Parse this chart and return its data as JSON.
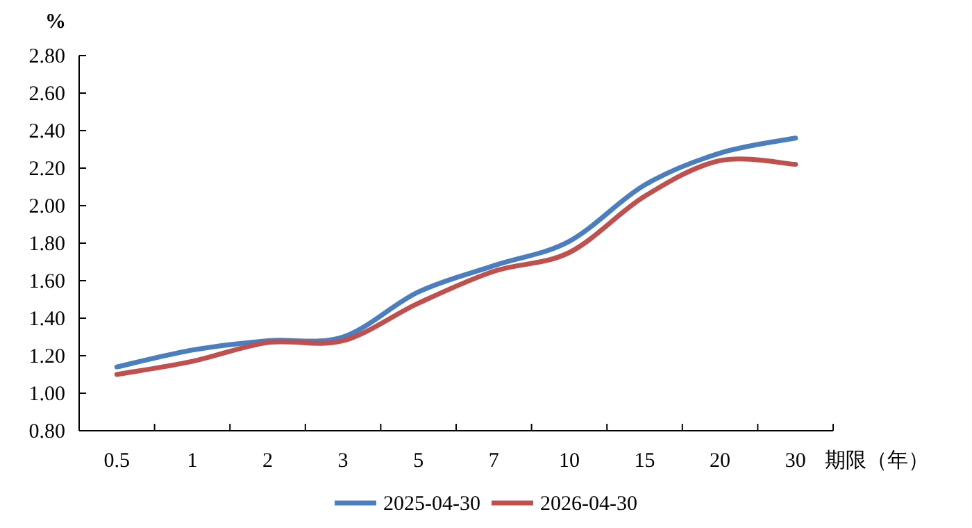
{
  "chart_data": {
    "type": "line",
    "xlabel": "期限（年）",
    "ylabel": "%",
    "categories": [
      "0.5",
      "1",
      "2",
      "3",
      "5",
      "7",
      "10",
      "15",
      "20",
      "30"
    ],
    "series": [
      {
        "name": "2025-04-30",
        "color": "#4a7ebf",
        "values": [
          1.14,
          1.23,
          1.28,
          1.3,
          1.54,
          1.68,
          1.81,
          2.11,
          2.28,
          2.36
        ]
      },
      {
        "name": "2026-04-30",
        "color": "#c0504d",
        "values": [
          1.1,
          1.17,
          1.27,
          1.28,
          1.48,
          1.65,
          1.75,
          2.05,
          2.24,
          2.22
        ]
      }
    ],
    "ylim": [
      0.8,
      2.8
    ],
    "yticks": [
      {
        "value": 0.8,
        "label": "0.80"
      },
      {
        "value": 1.0,
        "label": "1.00"
      },
      {
        "value": 1.2,
        "label": "1.20"
      },
      {
        "value": 1.4,
        "label": "1.40"
      },
      {
        "value": 1.6,
        "label": "1.60"
      },
      {
        "value": 1.8,
        "label": "1.80"
      },
      {
        "value": 2.0,
        "label": "2.00"
      },
      {
        "value": 2.2,
        "label": "2.20"
      },
      {
        "value": 2.4,
        "label": "2.40"
      },
      {
        "value": 2.6,
        "label": "2.60"
      },
      {
        "value": 2.8,
        "label": "2.80"
      }
    ],
    "legend": "bottom",
    "grid": false,
    "marker": "none",
    "line_style": "solid"
  }
}
